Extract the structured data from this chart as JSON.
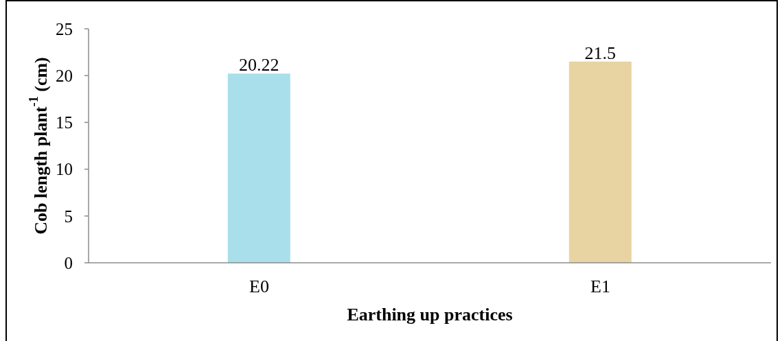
{
  "chart_data": {
    "type": "bar",
    "xlabel": "Earthing up practices",
    "ylabel": "Cob length plant$^{-1}$ (cm)",
    "categories": [
      "E0",
      "E1"
    ],
    "values": [
      20.22,
      21.5
    ],
    "colors": [
      "#a9dfea",
      "#e8d3a2"
    ],
    "ylim": [
      0,
      25
    ],
    "yticks": [
      0,
      5,
      10,
      15,
      20,
      25
    ],
    "data_labels": true,
    "legend": false
  }
}
